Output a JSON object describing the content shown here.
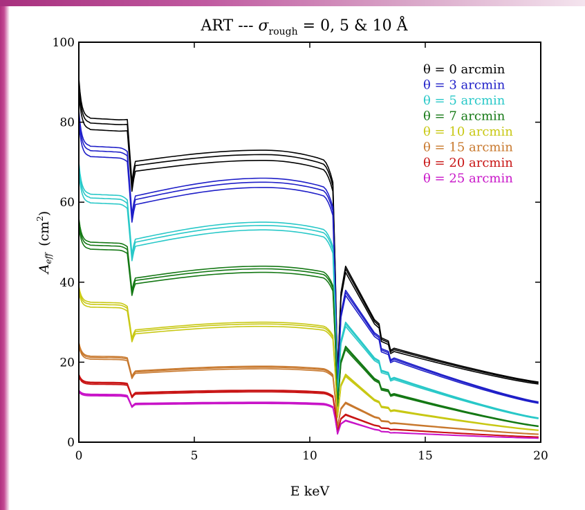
{
  "colors": {
    "background": "#ffffff",
    "accent_bar": "#b0307e",
    "frame": "#000000"
  },
  "chart_data": {
    "type": "line",
    "title_prefix": "ART --- ",
    "title_symbol": "σ",
    "title_subscript": "rough",
    "title_suffix": " = 0, 5 & 10 Å",
    "xlabel": "E  keV",
    "ylabel_main": "A",
    "ylabel_sub": "eff",
    "ylabel_units": "(cm",
    "ylabel_sup": "2",
    "ylabel_close": ")",
    "xlim": [
      0,
      20
    ],
    "ylim": [
      0,
      100
    ],
    "xticks": [
      0,
      5,
      10,
      15,
      20
    ],
    "yticks": [
      0,
      20,
      40,
      60,
      80,
      100
    ],
    "grid": false,
    "legend_position": "top-right",
    "roughness_values": [
      0,
      5,
      10
    ],
    "series": [
      {
        "name": "θ =  0 arcmin",
        "color": "#000000",
        "v0": 91,
        "plat1": 81,
        "mid": 73,
        "d2": 65,
        "d3": 44,
        "p13": 29,
        "end": 15
      },
      {
        "name": "θ =  3 arcmin",
        "color": "#1e1ec8",
        "v0": 83,
        "plat1": 74,
        "mid": 66,
        "d2": 57,
        "d3": 38,
        "p13": 26,
        "end": 10
      },
      {
        "name": "θ =  5 arcmin",
        "color": "#28c8c8",
        "v0": 70,
        "plat1": 62,
        "mid": 55,
        "d2": 47,
        "d3": 30,
        "p13": 20,
        "end": 6
      },
      {
        "name": "θ =  7 arcmin",
        "color": "#147814",
        "v0": 56,
        "plat1": 50,
        "mid": 44,
        "d2": 38,
        "d3": 24,
        "p13": 15,
        "end": 4
      },
      {
        "name": "θ = 10 arcmin",
        "color": "#c8c814",
        "v0": 39,
        "plat1": 35,
        "mid": 30,
        "d2": 26,
        "d3": 17,
        "p13": 10,
        "end": 3
      },
      {
        "name": "θ = 15 arcmin",
        "color": "#c8782d",
        "v0": 25,
        "plat1": 21.5,
        "mid": 19,
        "d2": 16.5,
        "d3": 10,
        "p13": 6,
        "end": 2
      },
      {
        "name": "θ = 20 arcmin",
        "color": "#c81414",
        "v0": 17,
        "plat1": 15,
        "mid": 13,
        "d2": 11.5,
        "d3": 7,
        "p13": 4,
        "end": 1.3
      },
      {
        "name": "θ = 25 arcmin",
        "color": "#c814c8",
        "v0": 13,
        "plat1": 12,
        "mid": 10,
        "d2": 9,
        "d3": 5.5,
        "p13": 3,
        "end": 1
      }
    ]
  }
}
